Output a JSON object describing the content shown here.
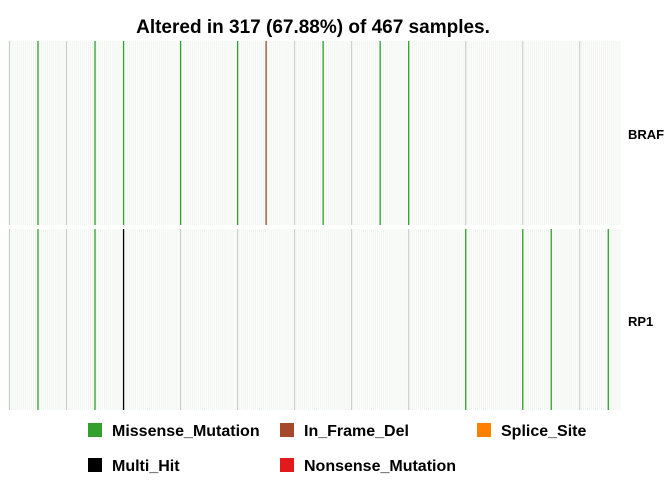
{
  "chart_data": {
    "type": "heatmap",
    "title": "Altered in 317 (67.88%) of 467 samples.",
    "total_samples": 467,
    "altered_samples": 317,
    "genes": [
      "BRAF",
      "RP1"
    ],
    "colors": {
      "Missense_Mutation": "#33a02c",
      "In_Frame_Del": "#a6492a",
      "Splice_Site": "#ff7f00",
      "Multi_Hit": "#000000",
      "Nonsense_Mutation": "#e31a1c",
      "background_line": "#c8c8c8",
      "fill_line": "#eef4ee"
    },
    "bg_line_spacing": 56.5,
    "alterations": {
      "BRAF": [
        {
          "sample": 14,
          "type": "Missense_Mutation"
        },
        {
          "sample": 42,
          "type": "Missense_Mutation"
        },
        {
          "sample": 56,
          "type": "Missense_Mutation"
        },
        {
          "sample": 84,
          "type": "Missense_Mutation"
        },
        {
          "sample": 112,
          "type": "Missense_Mutation"
        },
        {
          "sample": 126,
          "type": "In_Frame_Del"
        },
        {
          "sample": 154,
          "type": "Missense_Mutation"
        },
        {
          "sample": 182,
          "type": "Missense_Mutation"
        },
        {
          "sample": 196,
          "type": "Missense_Mutation"
        }
      ],
      "RP1": [
        {
          "sample": 14,
          "type": "Missense_Mutation"
        },
        {
          "sample": 42,
          "type": "Missense_Mutation"
        },
        {
          "sample": 56,
          "type": "Multi_Hit"
        },
        {
          "sample": 224,
          "type": "Missense_Mutation"
        },
        {
          "sample": 252,
          "type": "Missense_Mutation"
        },
        {
          "sample": 266,
          "type": "Missense_Mutation"
        },
        {
          "sample": 294,
          "type": "Missense_Mutation"
        }
      ]
    },
    "sample_order_total": 300,
    "legend": [
      {
        "label": "Missense_Mutation",
        "color": "#33a02c",
        "row": 0,
        "col": 0
      },
      {
        "label": "In_Frame_Del",
        "color": "#a6492a",
        "row": 0,
        "col": 1
      },
      {
        "label": "Splice_Site",
        "color": "#ff7f00",
        "row": 0,
        "col": 2
      },
      {
        "label": "Multi_Hit",
        "color": "#000000",
        "row": 1,
        "col": 0
      },
      {
        "label": "Nonsense_Mutation",
        "color": "#e31a1c",
        "row": 1,
        "col": 1
      }
    ]
  }
}
